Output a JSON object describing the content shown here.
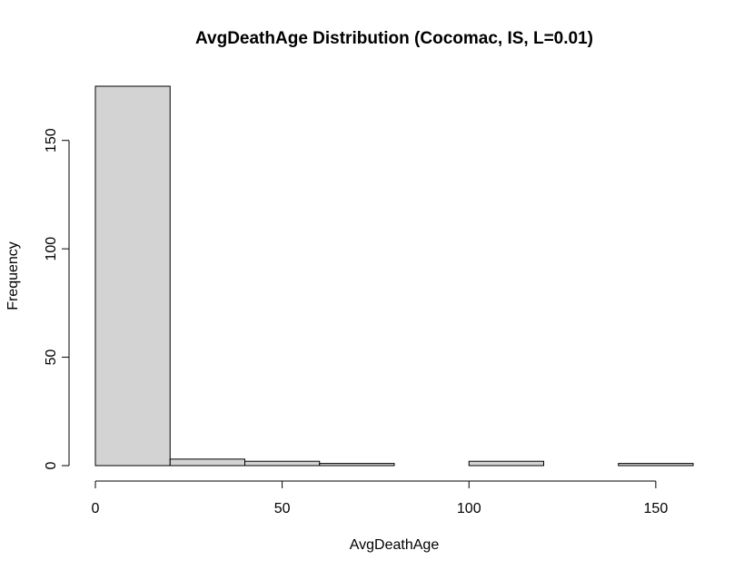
{
  "chart_data": {
    "type": "bar",
    "title": "AvgDeathAge Distribution (Cocomac, IS, L=0.01)",
    "xlabel": "AvgDeathAge",
    "ylabel": "Frequency",
    "bins": [
      {
        "start": 0,
        "end": 20,
        "count": 175
      },
      {
        "start": 20,
        "end": 40,
        "count": 3
      },
      {
        "start": 40,
        "end": 60,
        "count": 2
      },
      {
        "start": 60,
        "end": 80,
        "count": 1
      },
      {
        "start": 80,
        "end": 100,
        "count": 0
      },
      {
        "start": 100,
        "end": 120,
        "count": 2
      },
      {
        "start": 120,
        "end": 140,
        "count": 0
      },
      {
        "start": 140,
        "end": 160,
        "count": 1
      }
    ],
    "xlim": [
      0,
      160
    ],
    "ylim": [
      0,
      175
    ],
    "x_ticks": [
      0,
      50,
      100,
      150
    ],
    "y_ticks": [
      0,
      50,
      100,
      150
    ],
    "x_tick_labels": [
      "0",
      "50",
      "100",
      "150"
    ],
    "y_tick_labels": [
      "0",
      "50",
      "100",
      "150"
    ],
    "grid": false,
    "legend": "none",
    "bar_fill": "#d3d3d3",
    "bar_stroke": "#000000"
  }
}
